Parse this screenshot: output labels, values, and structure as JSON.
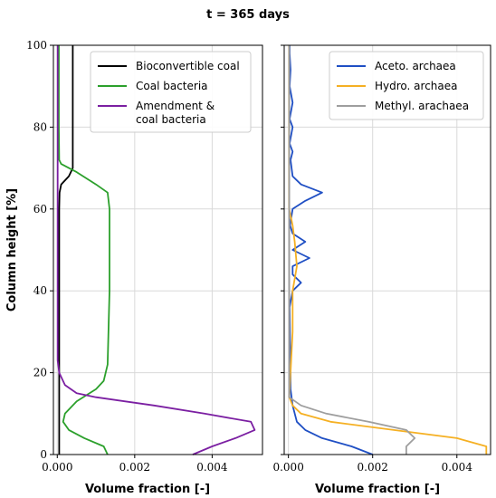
{
  "figure": {
    "title": "t = 365 days"
  },
  "chart_data": [
    {
      "type": "line",
      "xlabel": "Volume fraction [-]",
      "ylabel": "Column height [%]",
      "xlim": [
        -0.0001,
        0.0053
      ],
      "ylim": [
        0,
        100
      ],
      "xticks": [
        0,
        0.002,
        0.004
      ],
      "xtick_labels": [
        "0.000",
        "0.002",
        "0.004"
      ],
      "yticks": [
        0,
        20,
        40,
        60,
        80,
        100
      ],
      "ytick_labels": [
        "0",
        "20",
        "40",
        "60",
        "80",
        "100"
      ],
      "grid": true,
      "legend": "top-right",
      "series": [
        {
          "name": "Bioconvertible coal",
          "color": "#000000",
          "points": [
            [
              5e-05,
              0
            ],
            [
              5e-05,
              10
            ],
            [
              5e-05,
              20
            ],
            [
              5e-05,
              40
            ],
            [
              5e-05,
              60
            ],
            [
              6e-05,
              64
            ],
            [
              0.0001,
              66
            ],
            [
              0.0003,
              68
            ],
            [
              0.0004,
              70
            ],
            [
              0.0004,
              80
            ],
            [
              0.0004,
              100
            ]
          ]
        },
        {
          "name": "Coal bacteria",
          "color": "#2ca02c",
          "points": [
            [
              0.0013,
              0
            ],
            [
              0.0012,
              2
            ],
            [
              0.0007,
              4
            ],
            [
              0.0003,
              6
            ],
            [
              0.00015,
              8
            ],
            [
              0.0002,
              10
            ],
            [
              0.0005,
              13
            ],
            [
              0.001,
              16
            ],
            [
              0.0012,
              18
            ],
            [
              0.0013,
              22
            ],
            [
              0.00135,
              40
            ],
            [
              0.00135,
              60
            ],
            [
              0.0013,
              64
            ],
            [
              0.001,
              66
            ],
            [
              0.0005,
              69
            ],
            [
              0.0001,
              71
            ],
            [
              5e-05,
              72
            ],
            [
              4e-05,
              80
            ],
            [
              4e-05,
              100
            ]
          ]
        },
        {
          "name": "Amendment & coal bacteria",
          "color": "#7b1fa2",
          "points": [
            [
              0.0035,
              0
            ],
            [
              0.004,
              2
            ],
            [
              0.0046,
              4
            ],
            [
              0.0051,
              6
            ],
            [
              0.005,
              8
            ],
            [
              0.0038,
              10
            ],
            [
              0.0025,
              12
            ],
            [
              0.001,
              14
            ],
            [
              0.0005,
              15
            ],
            [
              0.0002,
              17
            ],
            [
              5e-05,
              20
            ],
            [
              1e-05,
              23
            ],
            [
              1e-05,
              40
            ],
            [
              1e-05,
              100
            ]
          ]
        }
      ]
    },
    {
      "type": "line",
      "xlabel": "Volume fraction [-]",
      "ylabel": "",
      "xlim": [
        -0.0001,
        0.0048
      ],
      "ylim": [
        0,
        100
      ],
      "xticks": [
        0,
        0.002,
        0.004
      ],
      "xtick_labels": [
        "0.000",
        "0.002",
        "0.004"
      ],
      "yticks": [
        0,
        20,
        40,
        60,
        80,
        100
      ],
      "grid": true,
      "legend": "top-right",
      "series": [
        {
          "name": "Aceto. archaea",
          "color": "#1f4fc4",
          "points": [
            [
              0.002,
              0
            ],
            [
              0.0015,
              2
            ],
            [
              0.0008,
              4
            ],
            [
              0.0004,
              6
            ],
            [
              0.0002,
              8
            ],
            [
              0.0001,
              12
            ],
            [
              5e-05,
              16
            ],
            [
              5e-05,
              20
            ],
            [
              3e-05,
              36
            ],
            [
              0.0001,
              40
            ],
            [
              0.0003,
              42
            ],
            [
              0.0001,
              44
            ],
            [
              0.0001,
              46
            ],
            [
              0.0005,
              48
            ],
            [
              0.0001,
              50
            ],
            [
              0.0004,
              52
            ],
            [
              0.0001,
              54
            ],
            [
              4e-05,
              56
            ],
            [
              0.0001,
              60
            ],
            [
              0.0004,
              62
            ],
            [
              0.0008,
              64
            ],
            [
              0.0003,
              66
            ],
            [
              0.0001,
              68
            ],
            [
              5e-05,
              72
            ],
            [
              0.0001,
              74
            ],
            [
              3e-05,
              76
            ],
            [
              0.0001,
              80
            ],
            [
              3e-05,
              82
            ],
            [
              0.0001,
              86
            ],
            [
              3e-05,
              90
            ],
            [
              5e-05,
              94
            ],
            [
              3e-05,
              98
            ],
            [
              3e-05,
              100
            ]
          ]
        },
        {
          "name": "Hydro. archaea",
          "color": "#f5b023",
          "points": [
            [
              0.0047,
              0
            ],
            [
              0.0047,
              2
            ],
            [
              0.004,
              4
            ],
            [
              0.0025,
              6
            ],
            [
              0.001,
              8
            ],
            [
              0.0003,
              10
            ],
            [
              0.0001,
              12
            ],
            [
              2e-05,
              14
            ],
            [
              5e-05,
              20
            ],
            [
              0.0001,
              30
            ],
            [
              0.0001,
              40
            ],
            [
              0.0002,
              46
            ],
            [
              0.00015,
              52
            ],
            [
              0.0001,
              56
            ],
            [
              2e-05,
              60
            ],
            [
              2e-05,
              100
            ]
          ]
        },
        {
          "name": "Methyl. arachaea",
          "color": "#9e9e9e",
          "points": [
            [
              0.0028,
              0
            ],
            [
              0.0028,
              2
            ],
            [
              0.003,
              4
            ],
            [
              0.0028,
              6
            ],
            [
              0.0019,
              8
            ],
            [
              0.0009,
              10
            ],
            [
              0.0003,
              12
            ],
            [
              2e-05,
              14
            ],
            [
              2e-05,
              100
            ]
          ]
        }
      ]
    }
  ]
}
